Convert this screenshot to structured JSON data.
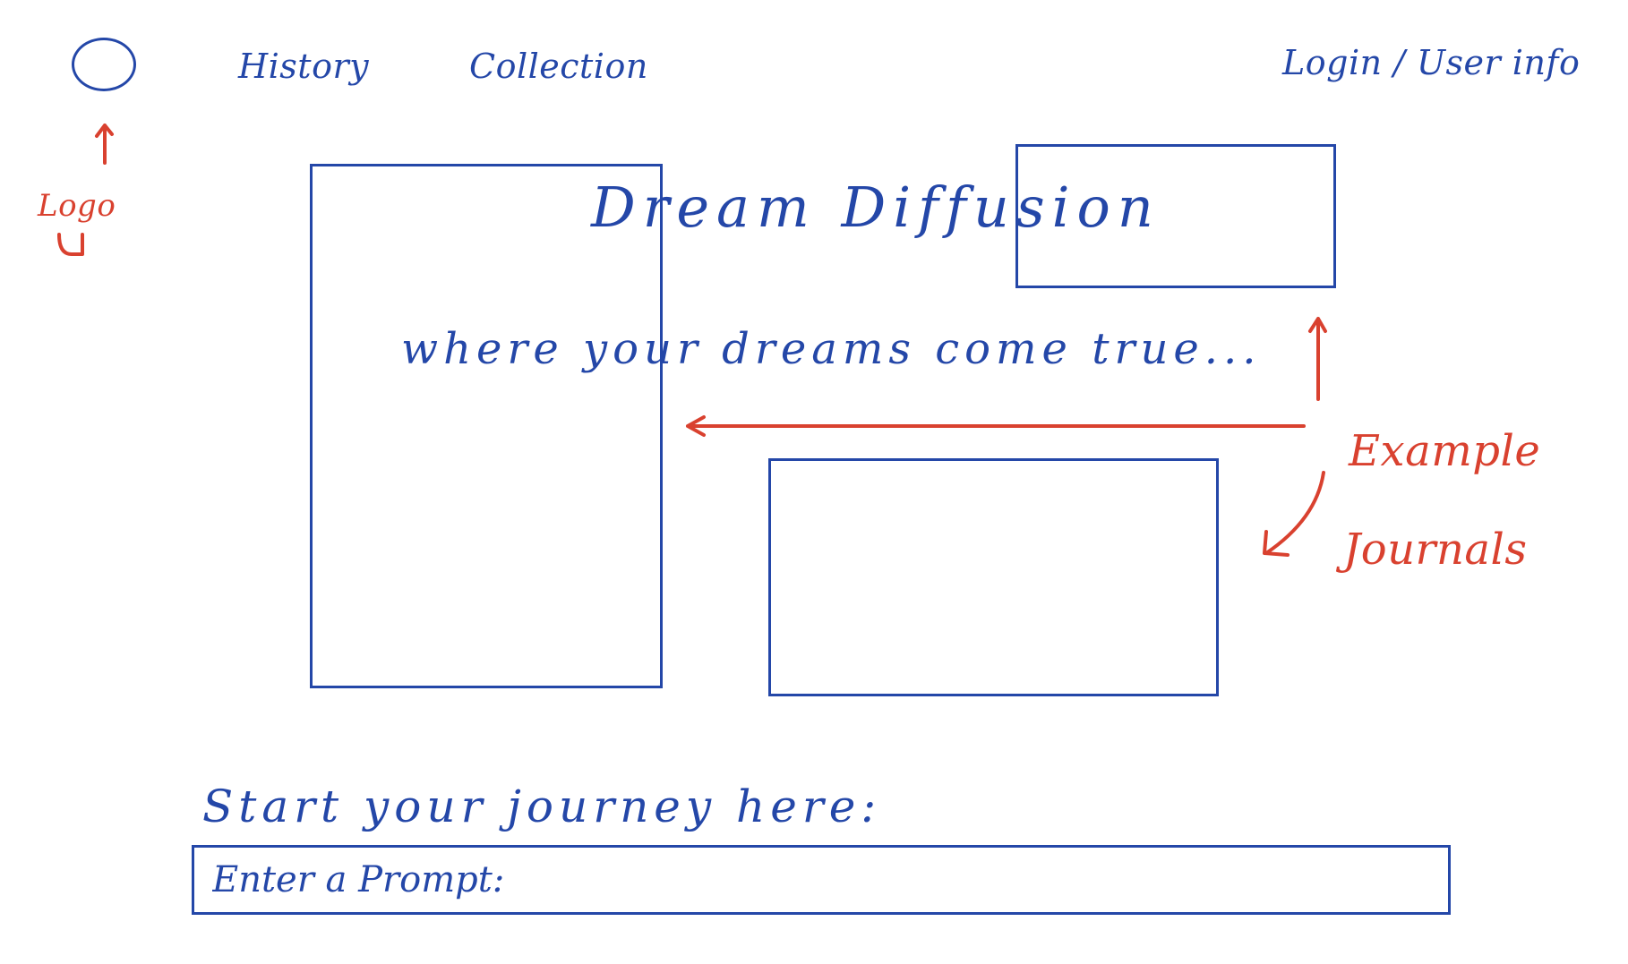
{
  "nav": {
    "logo_icon": "circle-logo-icon",
    "history_label": "History",
    "collection_label": "Collection",
    "login_label": "Login / User info"
  },
  "annotations": {
    "logo": "Logo",
    "examples_line1": "Example",
    "examples_line2": "Journals"
  },
  "hero": {
    "title": "Dream Diffusion",
    "tagline": "where your dreams come true..."
  },
  "prompt": {
    "heading": "Start your journey here:",
    "placeholder": "Enter a Prompt:",
    "value": ""
  },
  "colors": {
    "ink_blue": "#2447A8",
    "ink_red": "#D9412F",
    "background": "#FFFFFF"
  }
}
